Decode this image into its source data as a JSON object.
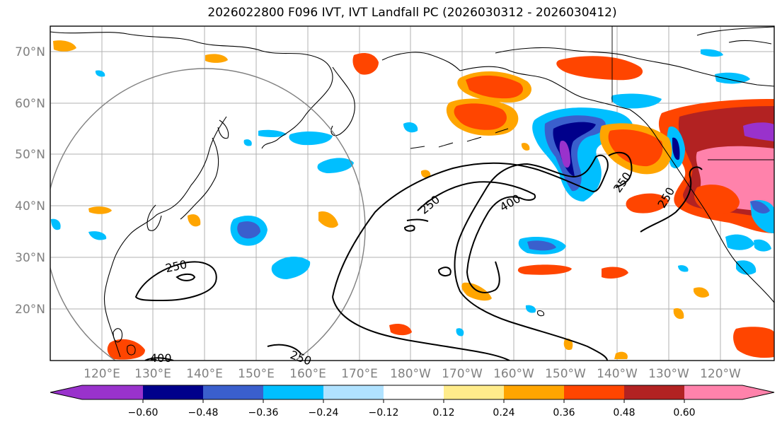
{
  "title": "2026022800 F096 IVT, IVT Landfall PC (2026030312 - 2026030412)",
  "lat_labels": [
    "70°N",
    "60°N",
    "50°N",
    "40°N",
    "30°N",
    "20°N"
  ],
  "lon_labels": [
    "120°E",
    "130°E",
    "140°E",
    "150°E",
    "160°E",
    "170°E",
    "180°W",
    "170°W",
    "160°W",
    "150°W",
    "140°W",
    "130°W",
    "120°W"
  ],
  "colorbar": {
    "colors": [
      "#9932cc",
      "#00008b",
      "#3a5fcd",
      "#00bfff",
      "#b0e2ff",
      "#ffffff",
      "#ffec8b",
      "#ffa500",
      "#ff4500",
      "#b22222",
      "#ff82ab"
    ],
    "ticks": [
      "−0.60",
      "−0.48",
      "−0.36",
      "−0.24",
      "−0.12",
      "0.12",
      "0.24",
      "0.36",
      "0.48",
      "0.60"
    ]
  },
  "contour_labels": [
    "250",
    "400",
    "250",
    "250",
    "400",
    "250",
    "250"
  ],
  "palette": {
    "grid": "#b0b0b0",
    "coast": "#000000",
    "circle": "#808080"
  }
}
